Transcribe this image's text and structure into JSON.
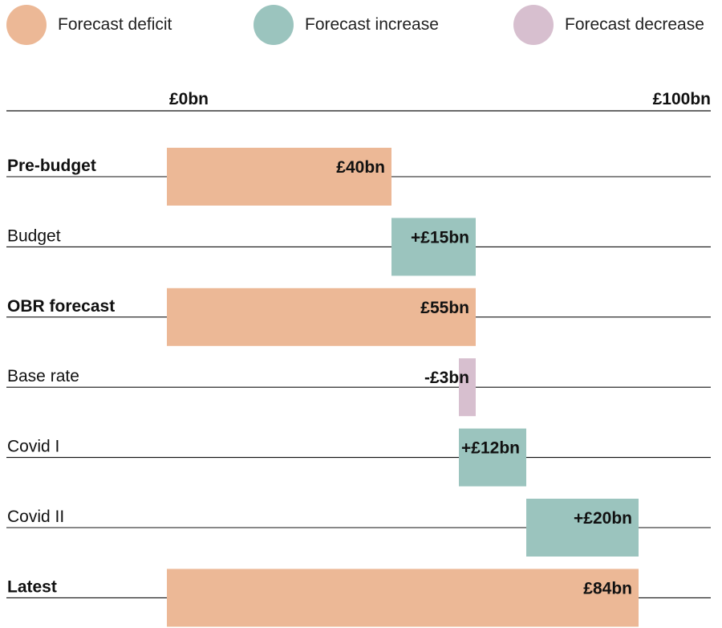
{
  "legend": [
    {
      "label": "Forecast deficit",
      "color": "#ECB896"
    },
    {
      "label": "Forecast increase",
      "color": "#9BC4BE"
    },
    {
      "label": "Forecast decrease",
      "color": "#D7BFCF"
    }
  ],
  "chart_data": {
    "type": "bar",
    "subtype": "waterfall",
    "orientation": "horizontal",
    "xlim": [
      0,
      100
    ],
    "x_tick_labels": [
      "£0bn",
      "£100bn"
    ],
    "rows": [
      {
        "label": "Pre-budget",
        "start": 0,
        "end": 40,
        "kind": "deficit",
        "value_label": "£40bn",
        "bold": true
      },
      {
        "label": "Budget",
        "start": 40,
        "end": 55,
        "kind": "increase",
        "value_label": "+£15bn",
        "bold": false
      },
      {
        "label": "OBR forecast",
        "start": 0,
        "end": 55,
        "kind": "deficit",
        "value_label": "£55bn",
        "bold": true
      },
      {
        "label": "Base rate",
        "start": 52,
        "end": 55,
        "kind": "decrease",
        "value_label": "-£3bn",
        "bold": false
      },
      {
        "label": "Covid I",
        "start": 52,
        "end": 64,
        "kind": "increase",
        "value_label": "+£12bn",
        "bold": false
      },
      {
        "label": "Covid II",
        "start": 64,
        "end": 84,
        "kind": "increase",
        "value_label": "+£20bn",
        "bold": false
      },
      {
        "label": "Latest",
        "start": 0,
        "end": 84,
        "kind": "deficit",
        "value_label": "£84bn",
        "bold": true
      }
    ],
    "colors": {
      "deficit": "#ECB896",
      "increase": "#9BC4BE",
      "decrease": "#D7BFCF"
    }
  }
}
